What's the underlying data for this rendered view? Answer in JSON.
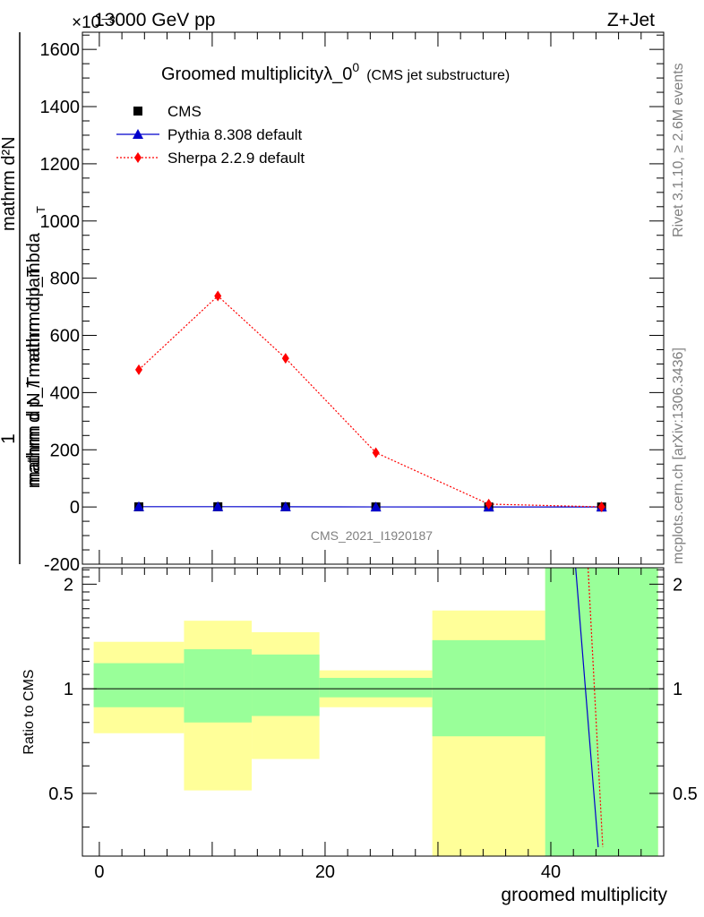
{
  "header": {
    "energy_label": "13000 GeV pp",
    "process_label": "Z+Jet",
    "exponent_label": "×10⁻³"
  },
  "side_text": {
    "rivet": "Rivet 3.1.10, ≥ 2.6M events",
    "mcplots": "mcplots.cern.ch [arXiv:1306.3436]"
  },
  "watermark": "CMS_2021_I1920187",
  "chart_data": [
    {
      "type": "line",
      "title": "Groomed multiplicityλ_0",
      "title_sup": "0",
      "subtitle": "(CMS jet substructure)",
      "ylabel_numerator": "1",
      "ylabel_denominator": "mathrm d N / mathrm d p_T",
      "ylabel_right_num": "mathrm d²N",
      "ylabel_right_den": "mathrm d p_T mathrm d lambda",
      "ylabel_sub": "T",
      "xlim": [
        -1.5,
        50
      ],
      "ylim": [
        -200,
        1660
      ],
      "yticks": [
        -200,
        0,
        200,
        400,
        600,
        800,
        1000,
        1200,
        1400,
        1600
      ],
      "legend": [
        {
          "name": "CMS",
          "color": "#000000",
          "marker": "square",
          "style": "none"
        },
        {
          "name": "Pythia 8.308 default",
          "color": "#0000cc",
          "marker": "triangle",
          "style": "solid"
        },
        {
          "name": "Sherpa 2.2.9 default",
          "color": "#ff0000",
          "marker": "diamond",
          "style": "dotted"
        }
      ],
      "series": [
        {
          "name": "CMS",
          "x": [
            3.5,
            10.5,
            16.5,
            24.5,
            34.5,
            44.5
          ],
          "y": [
            0.5,
            0.8,
            0.6,
            0.2,
            0.01,
            0.001
          ]
        },
        {
          "name": "Pythia 8.308 default",
          "x": [
            3.5,
            10.5,
            16.5,
            24.5,
            34.5,
            44.5
          ],
          "y": [
            1,
            1,
            0.8,
            0.2,
            0.01,
            0.002
          ]
        },
        {
          "name": "Sherpa 2.2.9 default",
          "x": [
            3.5,
            10.5,
            16.5,
            24.5,
            34.5,
            44.5
          ],
          "y": [
            480,
            738,
            520,
            190,
            10,
            0.5
          ]
        }
      ]
    },
    {
      "type": "area",
      "ylabel": "Ratio to CMS",
      "xlabel": "groomed multiplicity",
      "xlim": [
        -1.5,
        50
      ],
      "ylim": [
        0.33,
        2.23
      ],
      "log_y": true,
      "yticks_major": [
        0.5,
        1,
        2
      ],
      "ytick_labels": [
        "0.5",
        "1",
        "2"
      ],
      "xticks": [
        0,
        20,
        40
      ],
      "xtick_labels": [
        "0",
        "20",
        "40"
      ],
      "bins": [
        {
          "x0": -0.5,
          "x1": 7.5,
          "inner": [
            0.885,
            1.185
          ],
          "outer": [
            0.745,
            1.365
          ]
        },
        {
          "x0": 7.5,
          "x1": 13.5,
          "inner": [
            0.8,
            1.3
          ],
          "outer": [
            0.51,
            1.57
          ]
        },
        {
          "x0": 13.5,
          "x1": 19.5,
          "inner": [
            0.835,
            1.255
          ],
          "outer": [
            0.628,
            1.455
          ]
        },
        {
          "x0": 19.5,
          "x1": 29.5,
          "inner": [
            0.945,
            1.075
          ],
          "outer": [
            0.885,
            1.13
          ]
        },
        {
          "x0": 29.5,
          "x1": 39.5,
          "inner": [
            0.73,
            1.38
          ],
          "outer": [
            0.33,
            1.68
          ]
        },
        {
          "x0": 39.5,
          "x1": 49.5,
          "inner": [
            0.33,
            2.23
          ],
          "outer": [
            0.33,
            2.23
          ]
        }
      ],
      "ratio_lines": [
        {
          "name": "Pythia 8.308 default",
          "x": [
            42.2,
            44.2
          ],
          "y": [
            2.23,
            0.35
          ],
          "color": "#0000cc",
          "style": "solid"
        },
        {
          "name": "Sherpa 2.2.9 default",
          "x": [
            43.3,
            44.6
          ],
          "y": [
            2.23,
            0.35
          ],
          "color": "#ff0000",
          "style": "dotted"
        }
      ],
      "band_colors": {
        "inner": "#99ff99",
        "outer": "#ffff99"
      }
    }
  ]
}
